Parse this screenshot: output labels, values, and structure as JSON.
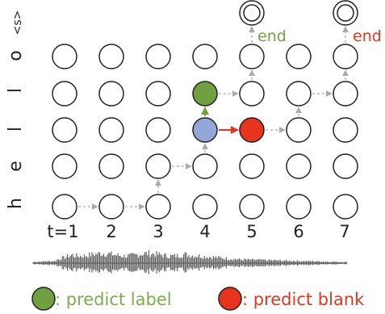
{
  "time_axis": {
    "labels": [
      "t=1",
      "2",
      "3",
      "4",
      "5",
      "6",
      "7"
    ]
  },
  "row_labels": [
    "<s>",
    "o",
    "l",
    "l",
    "e",
    "h"
  ],
  "end_labels": [
    {
      "text": "end",
      "color": "#70a040"
    },
    {
      "text": "end",
      "color": "#e8341c"
    }
  ],
  "legend": {
    "label_text": ": predict label",
    "blank_text": ": predict blank"
  },
  "colors": {
    "label_green": "#70a040",
    "label_text": "#7aae4a",
    "blank_red": "#e8341c",
    "highlight_blue": "#93a8d6",
    "gray_arrow": "#aaaaaa",
    "node_stroke": "#222222",
    "waveform": "#555555"
  },
  "paths": {
    "gray_path_1": [
      "node(0,0)→node(1,0)",
      "node(2,0)→node(2,1)",
      "node(2,1)→node(3,1)",
      "node(3,1)→node(3,2)"
    ],
    "gray_path_2": [
      "node(4,2)→node(5,2)",
      "node(5,2)→node(5,3)",
      "node(5,3)→node(6,3)",
      "node(6,3)→node(6,4)",
      "node(6,4)→final(6)"
    ],
    "gray_path_3": [
      "node(3,3)→node(4,3)",
      "node(4,3)→node(4,4)",
      "node(4,4)→final(4)"
    ]
  }
}
